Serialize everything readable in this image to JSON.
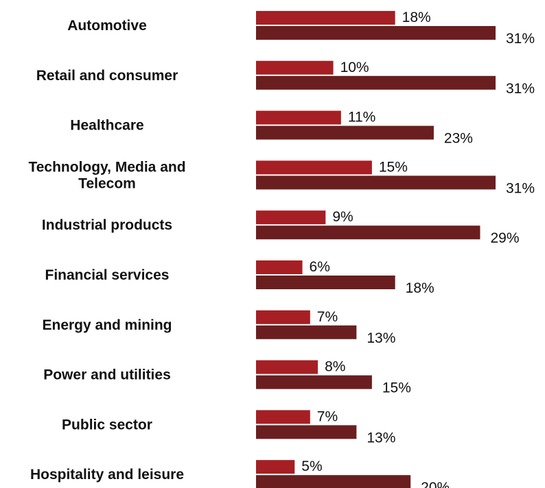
{
  "chart_data": {
    "type": "bar",
    "orientation": "horizontal",
    "categories": [
      "Automotive",
      "Retail and consumer",
      "Healthcare",
      "Technology, Media and Telecom",
      "Industrial products",
      "Financial services",
      "Energy and mining",
      "Power and utilities",
      "Public sector",
      "Hospitality and leisure"
    ],
    "series": [
      {
        "values": [
          18,
          10,
          11,
          15,
          9,
          6,
          7,
          8,
          7,
          5
        ],
        "color": "#A51F24"
      },
      {
        "values": [
          31,
          31,
          23,
          31,
          29,
          18,
          13,
          15,
          13,
          20
        ],
        "color": "#6B1E1F"
      }
    ],
    "value_suffix": "%",
    "xlim": [
      0,
      31
    ],
    "grid": false,
    "legend": "none"
  }
}
